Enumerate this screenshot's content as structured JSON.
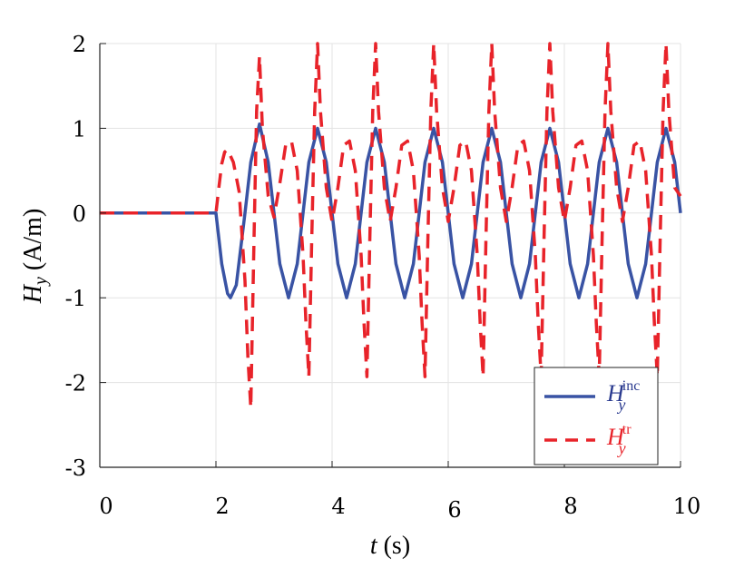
{
  "chart_data": {
    "type": "line",
    "title": "",
    "xlabel": {
      "var": "t",
      "unit": " (s)"
    },
    "ylabel": {
      "var": "H",
      "sub": "y",
      "unit": " (A/m)"
    },
    "xlim": [
      0,
      10
    ],
    "ylim": [
      -3,
      2
    ],
    "xticks": [
      0,
      2,
      4,
      6,
      8,
      10
    ],
    "yticks": [
      -3,
      -2,
      -1,
      0,
      1,
      2
    ],
    "xtick_labels": [
      "0",
      "2",
      "4",
      "6",
      "8",
      "10"
    ],
    "ytick_labels": [
      "-3",
      "-2",
      "-1",
      "0",
      "1",
      "2"
    ],
    "grid": true,
    "legend_position": "bottom-right",
    "series": [
      {
        "name": "H_y^inc",
        "legend": {
          "main": "H",
          "sub": "y",
          "sup": "inc"
        },
        "color": "#3953a4",
        "style": "solid",
        "onset": 2.0,
        "x": [
          0,
          0.5,
          1,
          1.5,
          2.0,
          2.1,
          2.2,
          2.25,
          2.35,
          2.5,
          2.6,
          2.75,
          2.9,
          3.0,
          3.1,
          3.25,
          3.4,
          3.5,
          3.6,
          3.75,
          3.9,
          4.0,
          4.1,
          4.25,
          4.4,
          4.5,
          4.6,
          4.75,
          4.9,
          5.0,
          5.1,
          5.25,
          5.4,
          5.5,
          5.6,
          5.75,
          5.9,
          6.0,
          6.1,
          6.25,
          6.4,
          6.5,
          6.6,
          6.75,
          6.9,
          7.0,
          7.1,
          7.25,
          7.4,
          7.5,
          7.6,
          7.75,
          7.9,
          8.0,
          8.1,
          8.25,
          8.4,
          8.5,
          8.6,
          8.75,
          8.9,
          9.0,
          9.1,
          9.25,
          9.4,
          9.5,
          9.6,
          9.75,
          9.9,
          10.0
        ],
        "y": [
          0,
          0,
          0,
          0,
          0,
          -0.6,
          -0.95,
          -1.0,
          -0.85,
          0,
          0.6,
          1.05,
          0.6,
          0,
          -0.6,
          -1.0,
          -0.6,
          0,
          0.6,
          1.0,
          0.6,
          0,
          -0.6,
          -1.0,
          -0.6,
          0,
          0.6,
          1.0,
          0.6,
          0,
          -0.6,
          -1.0,
          -0.6,
          0,
          0.6,
          1.0,
          0.6,
          0,
          -0.6,
          -1.0,
          -0.6,
          0,
          0.6,
          1.0,
          0.6,
          0,
          -0.6,
          -1.0,
          -0.6,
          0,
          0.6,
          1.0,
          0.6,
          0,
          -0.6,
          -1.0,
          -0.6,
          0,
          0.6,
          1.0,
          0.6,
          0,
          -0.6,
          -1.0,
          -0.6,
          0,
          0.6,
          1.0,
          0.6,
          0
        ]
      },
      {
        "name": "H_y^tr",
        "legend": {
          "main": "H",
          "sub": "y",
          "sup": "tr"
        },
        "color": "#e8232a",
        "style": "dashed",
        "onset": 2.0,
        "x": [
          0,
          0.5,
          1,
          1.5,
          2.0,
          2.05,
          2.1,
          2.15,
          2.2,
          2.3,
          2.4,
          2.5,
          2.55,
          2.6,
          2.65,
          2.7,
          2.75,
          2.8,
          2.9,
          3.0,
          3.1,
          3.2,
          3.3,
          3.4,
          3.5,
          3.55,
          3.6,
          3.65,
          3.7,
          3.75,
          3.8,
          3.9,
          4.0,
          4.1,
          4.2,
          4.3,
          4.4,
          4.5,
          4.55,
          4.6,
          4.65,
          4.7,
          4.75,
          4.8,
          4.9,
          5.0,
          5.1,
          5.2,
          5.3,
          5.4,
          5.5,
          5.55,
          5.6,
          5.65,
          5.7,
          5.75,
          5.8,
          5.9,
          6.0,
          6.1,
          6.2,
          6.3,
          6.4,
          6.5,
          6.55,
          6.6,
          6.65,
          6.7,
          6.75,
          6.8,
          6.9,
          7.0,
          7.1,
          7.2,
          7.3,
          7.4,
          7.5,
          7.55,
          7.6,
          7.65,
          7.7,
          7.75,
          7.8,
          7.9,
          8.0,
          8.1,
          8.2,
          8.3,
          8.4,
          8.5,
          8.55,
          8.6,
          8.65,
          8.7,
          8.75,
          8.8,
          8.9,
          9.0,
          9.1,
          9.2,
          9.3,
          9.4,
          9.5,
          9.55,
          9.6,
          9.65,
          9.7,
          9.75,
          9.8,
          9.9,
          10.0
        ],
        "y": [
          0,
          0,
          0,
          0,
          0,
          0.3,
          0.58,
          0.72,
          0.75,
          0.6,
          0.25,
          -0.8,
          -1.7,
          -2.3,
          -0.5,
          1.2,
          1.85,
          1.0,
          0.2,
          -0.05,
          0.35,
          0.8,
          0.85,
          0.5,
          -0.5,
          -1.3,
          -1.93,
          -0.3,
          1.2,
          2.0,
          1.2,
          0.3,
          -0.1,
          0.3,
          0.8,
          0.85,
          0.5,
          -0.5,
          -1.3,
          -1.93,
          -0.3,
          1.2,
          2.0,
          1.2,
          0.3,
          -0.1,
          0.3,
          0.8,
          0.85,
          0.5,
          -0.5,
          -1.3,
          -1.93,
          -0.3,
          1.2,
          2.0,
          1.2,
          0.3,
          -0.1,
          0.3,
          0.8,
          0.85,
          0.5,
          -0.5,
          -1.3,
          -1.93,
          -0.3,
          1.2,
          2.0,
          1.2,
          0.3,
          -0.1,
          0.3,
          0.8,
          0.85,
          0.5,
          -0.5,
          -1.3,
          -1.93,
          -0.3,
          1.2,
          2.0,
          1.2,
          0.3,
          -0.1,
          0.3,
          0.8,
          0.85,
          0.5,
          -0.5,
          -1.3,
          -1.93,
          -0.3,
          1.2,
          2.0,
          1.2,
          0.3,
          -0.1,
          0.3,
          0.8,
          0.85,
          0.5,
          -0.5,
          -1.3,
          -1.93,
          -0.3,
          1.2,
          2.0,
          1.2,
          0.3,
          0.2
        ]
      }
    ]
  }
}
